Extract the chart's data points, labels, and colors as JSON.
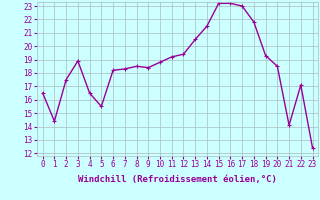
{
  "x": [
    0,
    1,
    2,
    3,
    4,
    5,
    6,
    7,
    8,
    9,
    10,
    11,
    12,
    13,
    14,
    15,
    16,
    17,
    18,
    19,
    20,
    21,
    22,
    23
  ],
  "y": [
    16.5,
    14.4,
    17.5,
    18.9,
    16.5,
    15.5,
    18.2,
    18.3,
    18.5,
    18.4,
    18.8,
    19.2,
    19.4,
    20.5,
    21.5,
    23.2,
    23.2,
    23.0,
    21.8,
    19.3,
    18.5,
    14.1,
    17.1,
    12.4
  ],
  "ymin": 12,
  "ymax": 23,
  "yticks": [
    12,
    13,
    14,
    15,
    16,
    17,
    18,
    19,
    20,
    21,
    22,
    23
  ],
  "xticks": [
    0,
    1,
    2,
    3,
    4,
    5,
    6,
    7,
    8,
    9,
    10,
    11,
    12,
    13,
    14,
    15,
    16,
    17,
    18,
    19,
    20,
    21,
    22,
    23
  ],
  "line_color": "#990099",
  "marker": "+",
  "marker_size": 3,
  "bg_color": "#ccffff",
  "grid_color": "#aabbbb",
  "xlabel": "Windchill (Refroidissement éolien,°C)",
  "xlabel_fontsize": 6.5,
  "tick_fontsize": 5.5,
  "line_width": 1.0
}
